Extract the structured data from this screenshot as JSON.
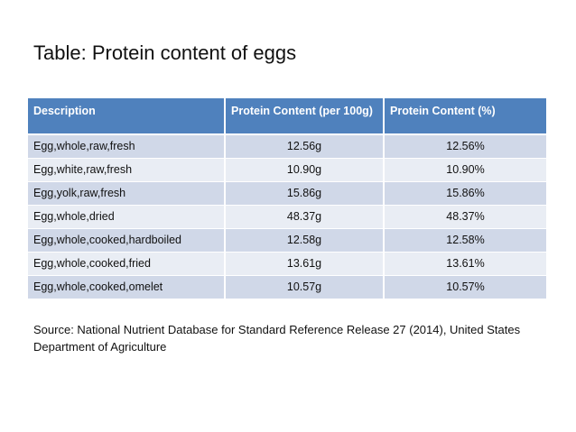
{
  "title": "Table: Protein content of eggs",
  "table": {
    "headers": [
      "Description",
      "Protein Content (per 100g)",
      "Protein Content (%)"
    ],
    "rows": [
      [
        "Egg,whole,raw,fresh",
        "12.56g",
        "12.56%"
      ],
      [
        "Egg,white,raw,fresh",
        "10.90g",
        "10.90%"
      ],
      [
        "Egg,yolk,raw,fresh",
        "15.86g",
        "15.86%"
      ],
      [
        "Egg,whole,dried",
        "48.37g",
        "48.37%"
      ],
      [
        "Egg,whole,cooked,hardboiled",
        "12.58g",
        "12.58%"
      ],
      [
        "Egg,whole,cooked,fried",
        "13.61g",
        "13.61%"
      ],
      [
        "Egg,whole,cooked,omelet",
        "10.57g",
        "10.57%"
      ]
    ]
  },
  "source": "Source: National Nutrient Database for Standard Reference Release 27 (2014), United States Department of Agriculture",
  "colors": {
    "header_bg": "#4f81bd",
    "row_odd_bg": "#d0d8e8",
    "row_even_bg": "#e9edf4"
  }
}
